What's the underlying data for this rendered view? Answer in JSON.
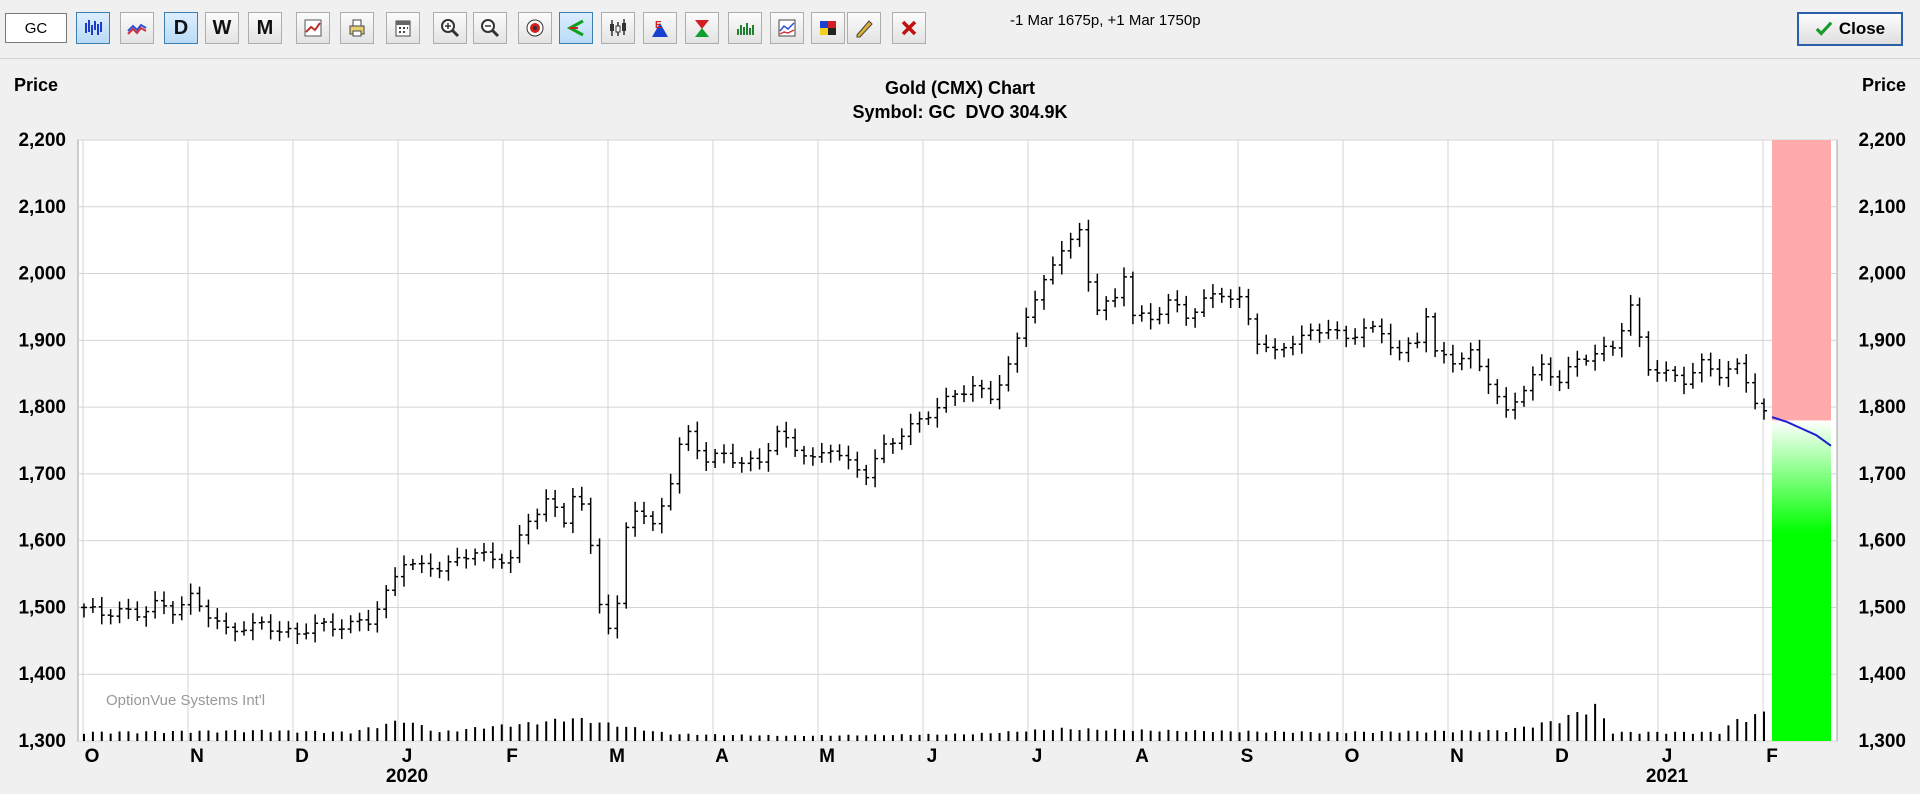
{
  "toolbar": {
    "symbol_value": "GC",
    "period_buttons": [
      "D",
      "W",
      "M"
    ],
    "info_text": "-1 Mar 1675p, +1 Mar 1750p",
    "close_label": "Close",
    "close_icon": "checkmark-icon"
  },
  "colors": {
    "upper_band": "#ffabab",
    "lower_band": "#00ff00",
    "forecast_line": "#2020d0",
    "bars": "#000000",
    "grid": "#d4d4d4"
  },
  "chart_data": {
    "type": "bar",
    "subtype": "ohlc",
    "title": "Gold (CMX) Chart",
    "subtitle": "Symbol: GC  DVO 304.9K",
    "ylabel_left": "Price",
    "ylabel_right": "Price",
    "ylim": [
      1300,
      2200
    ],
    "y_ticks": [
      "1,300",
      "1,400",
      "1,500",
      "1,600",
      "1,700",
      "1,800",
      "1,900",
      "2,000",
      "2,100",
      "2,200"
    ],
    "x_month_labels": [
      "O",
      "N",
      "D",
      "J",
      "F",
      "M",
      "A",
      "M",
      "J",
      "J",
      "A",
      "S",
      "O",
      "N",
      "D",
      "J",
      "F"
    ],
    "x_year_labels": [
      "2020",
      "2021"
    ],
    "watermark": "OptionVue Systems Int'l",
    "grid": true,
    "price_path": [
      [
        0,
        1500
      ],
      [
        2,
        1490
      ],
      [
        4,
        1495
      ],
      [
        6,
        1490
      ],
      [
        8,
        1505
      ],
      [
        10,
        1495
      ],
      [
        12,
        1515
      ],
      [
        14,
        1490
      ],
      [
        16,
        1465
      ],
      [
        18,
        1470
      ],
      [
        20,
        1475
      ],
      [
        22,
        1465
      ],
      [
        24,
        1460
      ],
      [
        26,
        1475
      ],
      [
        28,
        1470
      ],
      [
        30,
        1475
      ],
      [
        32,
        1480
      ],
      [
        34,
        1520
      ],
      [
        36,
        1570
      ],
      [
        38,
        1560
      ],
      [
        40,
        1560
      ],
      [
        42,
        1570
      ],
      [
        44,
        1585
      ],
      [
        46,
        1570
      ],
      [
        48,
        1575
      ],
      [
        50,
        1630
      ],
      [
        52,
        1660
      ],
      [
        54,
        1630
      ],
      [
        55,
        1670
      ],
      [
        56,
        1650
      ],
      [
        57,
        1590
      ],
      [
        58,
        1510
      ],
      [
        59,
        1470
      ],
      [
        60,
        1500
      ],
      [
        61,
        1620
      ],
      [
        62,
        1650
      ],
      [
        64,
        1620
      ],
      [
        66,
        1690
      ],
      [
        67,
        1740
      ],
      [
        68,
        1760
      ],
      [
        70,
        1720
      ],
      [
        72,
        1730
      ],
      [
        74,
        1715
      ],
      [
        76,
        1720
      ],
      [
        78,
        1760
      ],
      [
        80,
        1740
      ],
      [
        82,
        1720
      ],
      [
        84,
        1740
      ],
      [
        86,
        1715
      ],
      [
        88,
        1700
      ],
      [
        90,
        1740
      ],
      [
        92,
        1760
      ],
      [
        94,
        1780
      ],
      [
        96,
        1800
      ],
      [
        98,
        1820
      ],
      [
        100,
        1830
      ],
      [
        102,
        1815
      ],
      [
        104,
        1860
      ],
      [
        106,
        1940
      ],
      [
        108,
        1985
      ],
      [
        110,
        2040
      ],
      [
        112,
        2060
      ],
      [
        113,
        1990
      ],
      [
        114,
        1950
      ],
      [
        116,
        1960
      ],
      [
        117,
        2000
      ],
      [
        118,
        1940
      ],
      [
        120,
        1930
      ],
      [
        122,
        1960
      ],
      [
        124,
        1935
      ],
      [
        126,
        1960
      ],
      [
        128,
        1970
      ],
      [
        130,
        1960
      ],
      [
        132,
        1900
      ],
      [
        134,
        1880
      ],
      [
        136,
        1900
      ],
      [
        138,
        1910
      ],
      [
        140,
        1920
      ],
      [
        142,
        1900
      ],
      [
        144,
        1920
      ],
      [
        146,
        1910
      ],
      [
        148,
        1880
      ],
      [
        150,
        1900
      ],
      [
        151,
        1940
      ],
      [
        152,
        1880
      ],
      [
        154,
        1870
      ],
      [
        156,
        1880
      ],
      [
        158,
        1840
      ],
      [
        160,
        1790
      ],
      [
        162,
        1830
      ],
      [
        164,
        1860
      ],
      [
        166,
        1840
      ],
      [
        168,
        1870
      ],
      [
        170,
        1880
      ],
      [
        172,
        1890
      ],
      [
        174,
        1950
      ],
      [
        175,
        1900
      ],
      [
        176,
        1860
      ],
      [
        178,
        1850
      ],
      [
        180,
        1840
      ],
      [
        182,
        1865
      ],
      [
        184,
        1850
      ],
      [
        186,
        1860
      ],
      [
        187,
        1840
      ],
      [
        188,
        1810
      ],
      [
        189,
        1790
      ]
    ],
    "forecast_path": [
      [
        0,
        1785
      ],
      [
        0.25,
        1778
      ],
      [
        0.5,
        1768
      ],
      [
        0.75,
        1758
      ],
      [
        1,
        1742
      ]
    ],
    "band_top": 2200,
    "band_upper_bottom": 1780,
    "band_bottom": 1300,
    "volume_profile": [
      [
        0,
        0.25
      ],
      [
        20,
        0.3
      ],
      [
        30,
        0.25
      ],
      [
        36,
        0.6
      ],
      [
        40,
        0.25
      ],
      [
        45,
        0.4
      ],
      [
        50,
        0.5
      ],
      [
        55,
        0.65
      ],
      [
        60,
        0.45
      ],
      [
        66,
        0.2
      ],
      [
        80,
        0.15
      ],
      [
        100,
        0.2
      ],
      [
        110,
        0.35
      ],
      [
        120,
        0.3
      ],
      [
        140,
        0.25
      ],
      [
        160,
        0.3
      ],
      [
        166,
        0.6
      ],
      [
        170,
        1.0
      ],
      [
        172,
        0.25
      ],
      [
        184,
        0.25
      ],
      [
        186,
        0.6
      ],
      [
        189,
        0.8
      ]
    ]
  }
}
